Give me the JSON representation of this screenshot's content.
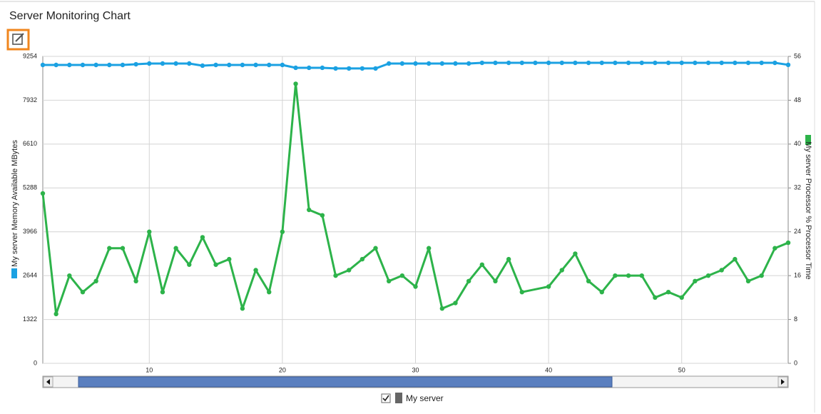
{
  "header": {
    "title": "Server Monitoring Chart"
  },
  "chart_data": {
    "type": "line",
    "x": [
      2,
      3,
      4,
      5,
      6,
      7,
      8,
      9,
      10,
      11,
      12,
      13,
      14,
      15,
      16,
      17,
      18,
      19,
      20,
      21,
      22,
      23,
      24,
      25,
      26,
      27,
      28,
      29,
      30,
      31,
      32,
      33,
      34,
      35,
      36,
      37,
      38,
      39,
      40,
      41,
      42,
      43,
      44,
      45,
      46,
      47,
      48,
      49,
      50,
      51,
      52,
      53,
      54,
      55,
      56,
      57,
      58
    ],
    "xlim": [
      2,
      58
    ],
    "xticks": [
      10,
      20,
      30,
      40,
      50
    ],
    "ylim": [
      0,
      9254
    ],
    "yticks": [
      0,
      1322,
      2644,
      3966,
      5288,
      6610,
      7932,
      9254
    ],
    "y2lim": [
      0,
      56
    ],
    "y2ticks": [
      0,
      8,
      16,
      24,
      32,
      40,
      48,
      56
    ],
    "ylabel": "My server Memory Available MBytes",
    "y2label": "My server Processor % Processor Time",
    "grid": true,
    "legend": "My server",
    "series": [
      {
        "name": "My server Memory Available MBytes",
        "color": "#1ba1e2",
        "values": [
          8996,
          8996,
          8996,
          8996,
          8996,
          8996,
          8996,
          9017,
          9039,
          9039,
          9039,
          9039,
          8975,
          8996,
          8996,
          8996,
          8996,
          8996,
          8996,
          8910,
          8910,
          8910,
          8890,
          8890,
          8890,
          8890,
          9039,
          9039,
          9039,
          9039,
          9039,
          9039,
          9039,
          9060,
          9060,
          9060,
          9060,
          9060,
          9060,
          9060,
          9060,
          9060,
          9060,
          9060,
          9060,
          9060,
          9060,
          9060,
          9060,
          9060,
          9060,
          9060,
          9060,
          9060,
          9060,
          9060,
          9000
        ]
      },
      {
        "name": "My server Processor % Processor Time",
        "color": "#2db34a",
        "axis": "y2",
        "x": [
          2,
          3,
          4,
          5,
          6,
          7,
          8,
          9,
          10,
          11,
          12,
          13,
          14,
          15,
          16,
          17,
          18,
          19,
          20,
          21,
          22,
          23,
          24,
          25,
          26,
          27,
          28,
          29,
          30,
          31,
          32,
          33,
          34,
          35,
          36,
          37,
          38,
          40,
          41,
          42,
          43,
          44,
          45,
          46,
          47,
          48,
          49,
          50,
          51,
          52,
          53,
          54,
          55,
          56,
          57,
          58
        ],
        "values": [
          31,
          9,
          16,
          13,
          15,
          21,
          21,
          15,
          24,
          13,
          21,
          18,
          23,
          18,
          19,
          10,
          17,
          13,
          24,
          51,
          28,
          27,
          16,
          17,
          19,
          21,
          15,
          16,
          14,
          21,
          10,
          11,
          15,
          18,
          15,
          19,
          13,
          14,
          17,
          20,
          15,
          13,
          16,
          16,
          16,
          12,
          13,
          12,
          15,
          16,
          17,
          19,
          15,
          16,
          21,
          22
        ]
      }
    ]
  }
}
